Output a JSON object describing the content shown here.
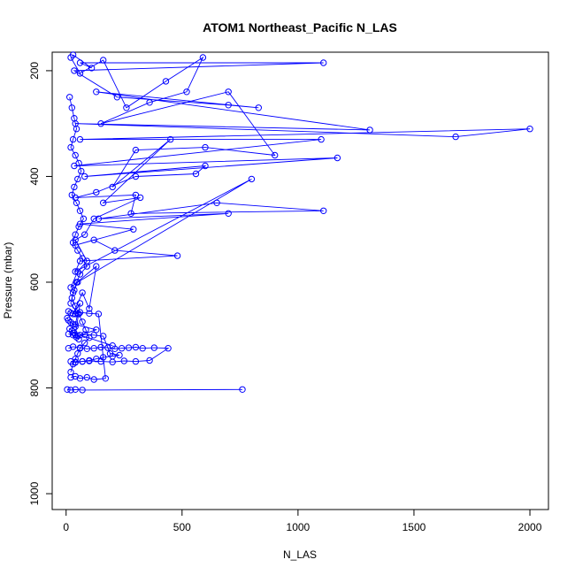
{
  "chart_data": {
    "type": "line",
    "title": "ATOM1 Northeast_Pacific N_LAS",
    "xlabel": "N_LAS",
    "ylabel": "Pressure (mbar)",
    "xlim": [
      -60,
      2080
    ],
    "ylim": [
      1030,
      165
    ],
    "y_reversed": true,
    "grid": false,
    "series_color": "#0000ff",
    "marker": "open-circle",
    "xticks": [
      0,
      500,
      1000,
      1500,
      2000
    ],
    "yticks": [
      200,
      400,
      600,
      800,
      1000
    ],
    "series": [
      {
        "x": [
          30,
          110,
          60,
          1110,
          35,
          220,
          700,
          830,
          130,
          1310,
          40,
          1680,
          2000,
          60,
          1100,
          35,
          1170,
          80,
          600,
          560,
          300,
          130,
          40,
          300,
          280,
          1110,
          650,
          140,
          700,
          60,
          290,
          40,
          120,
          210,
          480,
          60,
          40,
          800,
          50,
          30,
          20,
          50,
          40,
          130,
          60,
          200
        ],
        "y": [
          170,
          195,
          185,
          185,
          200,
          250,
          265,
          270,
          240,
          312,
          300,
          325,
          310,
          330,
          330,
          380,
          365,
          400,
          380,
          395,
          400,
          430,
          440,
          435,
          470,
          465,
          450,
          480,
          470,
          490,
          500,
          530,
          520,
          540,
          550,
          560,
          580,
          405,
          600,
          620,
          640,
          660,
          680,
          690,
          700,
          720
        ]
      },
      {
        "x": [
          20,
          60,
          160,
          260,
          430,
          590,
          520,
          360,
          150,
          700,
          900,
          600,
          300,
          200,
          450,
          160,
          320,
          120,
          80,
          40,
          90,
          50,
          20,
          130,
          100,
          70,
          30,
          60,
          40
        ],
        "y": [
          175,
          205,
          180,
          270,
          220,
          175,
          240,
          260,
          300,
          240,
          360,
          345,
          350,
          420,
          330,
          450,
          440,
          480,
          510,
          520,
          560,
          580,
          610,
          570,
          650,
          620,
          660,
          640,
          700
        ]
      },
      {
        "x": [
          15,
          25,
          35,
          45,
          30,
          20,
          40,
          55,
          65,
          50,
          35,
          25,
          45,
          60,
          75,
          55,
          40,
          30,
          50,
          70,
          90,
          60,
          45,
          35,
          25,
          40,
          55,
          70,
          85,
          100,
          80,
          60,
          50,
          40,
          30,
          20
        ],
        "y": [
          250,
          270,
          290,
          310,
          330,
          345,
          360,
          375,
          390,
          405,
          420,
          435,
          450,
          465,
          480,
          495,
          510,
          525,
          540,
          555,
          570,
          585,
          600,
          615,
          630,
          645,
          660,
          675,
          690,
          705,
          715,
          725,
          735,
          745,
          755,
          770
        ]
      },
      {
        "x": [
          10,
          30,
          60,
          90,
          120,
          150,
          180,
          210,
          240,
          270,
          300,
          330,
          380,
          440,
          360,
          300,
          250,
          200,
          150,
          100,
          70,
          40,
          20
        ],
        "y": [
          725,
          722,
          724,
          726,
          725,
          723,
          724,
          726,
          725,
          724,
          723,
          725,
          724,
          725,
          748,
          750,
          749,
          751,
          750,
          749,
          750,
          751,
          750
        ]
      },
      {
        "x": [
          10,
          30,
          50,
          80,
          120,
          160,
          190,
          230,
          200,
          160,
          130,
          100,
          70,
          40
        ],
        "y": [
          698,
          700,
          701,
          699,
          700,
          702,
          735,
          738,
          740,
          742,
          745,
          748,
          750,
          752
        ]
      },
      {
        "x": [
          10,
          20,
          40,
          60,
          100,
          140,
          170,
          120,
          90,
          60,
          40,
          20
        ],
        "y": [
          655,
          658,
          660,
          657,
          659,
          660,
          782,
          784,
          780,
          782,
          778,
          780
        ]
      },
      {
        "x": [
          5,
          20,
          40,
          70,
          760
        ],
        "y": [
          803,
          804,
          803,
          804,
          803
        ]
      },
      {
        "x": [
          5,
          10,
          20,
          30,
          40,
          15,
          25,
          35,
          45,
          55
        ],
        "y": [
          668,
          672,
          676,
          680,
          684,
          688,
          692,
          696,
          704,
          708
        ]
      }
    ]
  }
}
